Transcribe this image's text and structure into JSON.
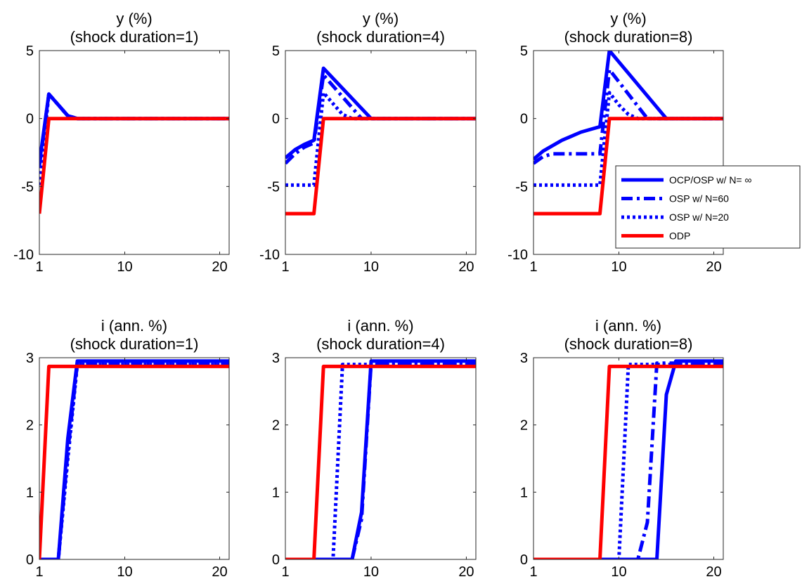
{
  "chart_data": [
    {
      "type": "line",
      "title": "y (%)",
      "subtitle": "(shock duration=1)",
      "xlim": [
        1,
        21
      ],
      "ylim": [
        -10,
        5
      ],
      "xticks": [
        1,
        10,
        20
      ],
      "yticks": [
        5,
        0,
        -5,
        -10
      ],
      "grid": false,
      "series": [
        {
          "name": "OCP/OSP w/ N= ∞",
          "style": "solid",
          "color": "#0000ff",
          "x": [
            1,
            2,
            3,
            4,
            5,
            21
          ],
          "y": [
            -3.3,
            1.8,
            1.0,
            0.2,
            0,
            0
          ]
        },
        {
          "name": "OSP w/ N=60",
          "style": "dashdot",
          "color": "#0000ff",
          "x": [
            1,
            2,
            3,
            4,
            5,
            21
          ],
          "y": [
            -3.5,
            1.8,
            1.0,
            0.2,
            0,
            0
          ]
        },
        {
          "name": "OSP w/ N=20",
          "style": "dotted",
          "color": "#0000ff",
          "x": [
            1,
            2,
            3,
            4,
            5,
            21
          ],
          "y": [
            -4.9,
            1.8,
            1.0,
            0.2,
            0,
            0
          ]
        },
        {
          "name": "ODP",
          "style": "solid",
          "color": "#ff0000",
          "x": [
            1,
            2,
            21
          ],
          "y": [
            -7,
            0,
            0
          ]
        }
      ]
    },
    {
      "type": "line",
      "title": "y (%)",
      "subtitle": "(shock duration=4)",
      "xlim": [
        1,
        21
      ],
      "ylim": [
        -10,
        5
      ],
      "xticks": [
        1,
        10,
        20
      ],
      "yticks": [
        5,
        0,
        -5,
        -10
      ],
      "grid": false,
      "series": [
        {
          "name": "OCP/OSP w/ N= ∞",
          "style": "solid",
          "color": "#0000ff",
          "x": [
            1,
            2,
            3,
            4,
            5,
            10,
            21
          ],
          "y": [
            -2.9,
            -2.3,
            -1.9,
            -1.6,
            3.7,
            0,
            0
          ]
        },
        {
          "name": "OSP w/ N=60",
          "style": "dashdot",
          "color": "#0000ff",
          "x": [
            1,
            2,
            3,
            4,
            5,
            9,
            21
          ],
          "y": [
            -3.3,
            -2.6,
            -2.1,
            -1.8,
            3.2,
            0,
            0
          ]
        },
        {
          "name": "OSP w/ N=20",
          "style": "dotted",
          "color": "#0000ff",
          "x": [
            1,
            4,
            5,
            7,
            8,
            21
          ],
          "y": [
            -4.9,
            -4.9,
            1.9,
            0.3,
            0,
            0
          ]
        },
        {
          "name": "ODP",
          "style": "solid",
          "color": "#ff0000",
          "x": [
            1,
            4,
            5,
            21
          ],
          "y": [
            -7,
            -7,
            0,
            0
          ]
        }
      ]
    },
    {
      "type": "line",
      "title": "y (%)",
      "subtitle": "(shock duration=8)",
      "xlim": [
        1,
        21
      ],
      "ylim": [
        -10,
        5
      ],
      "xticks": [
        1,
        10,
        20
      ],
      "yticks": [
        5,
        0,
        -5,
        -10
      ],
      "grid": false,
      "legend": {
        "position": "east"
      },
      "series": [
        {
          "name": "OCP/OSP w/ N= ∞",
          "style": "solid",
          "color": "#0000ff",
          "x": [
            1,
            2,
            3,
            4,
            5,
            6,
            7,
            8,
            9,
            15,
            21
          ],
          "y": [
            -3.0,
            -2.4,
            -2.0,
            -1.6,
            -1.3,
            -1.0,
            -0.8,
            -0.6,
            5.0,
            0,
            0
          ]
        },
        {
          "name": "OSP w/ N=60",
          "style": "dashdot",
          "color": "#0000ff",
          "x": [
            1,
            2,
            3,
            4,
            8,
            9,
            13,
            21
          ],
          "y": [
            -3.3,
            -2.8,
            -2.6,
            -2.6,
            -2.6,
            3.6,
            0,
            0
          ]
        },
        {
          "name": "OSP w/ N=20",
          "style": "dotted",
          "color": "#0000ff",
          "x": [
            1,
            8,
            9,
            10,
            11,
            12,
            21
          ],
          "y": [
            -4.9,
            -4.9,
            1.9,
            1.0,
            0.3,
            0,
            0
          ]
        },
        {
          "name": "ODP",
          "style": "solid",
          "color": "#ff0000",
          "x": [
            1,
            8,
            9,
            21
          ],
          "y": [
            -7,
            -7,
            0,
            0
          ]
        }
      ]
    },
    {
      "type": "line",
      "title": "i (ann. %)",
      "subtitle": "(shock duration=1)",
      "xlim": [
        1,
        21
      ],
      "ylim": [
        0,
        3
      ],
      "xticks": [
        1,
        10,
        20
      ],
      "yticks": [
        3,
        2,
        1,
        0
      ],
      "grid": false,
      "series": [
        {
          "name": "OCP/OSP w/ N= ∞",
          "style": "solid",
          "color": "#0000ff",
          "x": [
            1,
            3,
            4,
            5,
            21
          ],
          "y": [
            0,
            0,
            1.8,
            2.95,
            2.95
          ]
        },
        {
          "name": "OSP w/ N=60",
          "style": "dashdot",
          "color": "#0000ff",
          "x": [
            1,
            3,
            4,
            5,
            21
          ],
          "y": [
            0,
            0,
            1.6,
            2.92,
            2.92
          ]
        },
        {
          "name": "OSP w/ N=20",
          "style": "dotted",
          "color": "#0000ff",
          "x": [
            1,
            3,
            4,
            5,
            21
          ],
          "y": [
            0,
            0,
            1.5,
            2.9,
            2.9
          ]
        },
        {
          "name": "ODP",
          "style": "solid",
          "color": "#ff0000",
          "x": [
            1,
            2,
            21
          ],
          "y": [
            0,
            2.87,
            2.87
          ]
        }
      ]
    },
    {
      "type": "line",
      "title": "i (ann. %)",
      "subtitle": "(shock duration=4)",
      "xlim": [
        1,
        21
      ],
      "ylim": [
        0,
        3
      ],
      "xticks": [
        1,
        10,
        20
      ],
      "yticks": [
        3,
        2,
        1,
        0
      ],
      "grid": false,
      "series": [
        {
          "name": "OCP/OSP w/ N= ∞",
          "style": "solid",
          "color": "#0000ff",
          "x": [
            1,
            8,
            9,
            10,
            21
          ],
          "y": [
            0,
            0,
            0.7,
            2.95,
            2.95
          ]
        },
        {
          "name": "OSP w/ N=60",
          "style": "dashdot",
          "color": "#0000ff",
          "x": [
            1,
            8,
            9,
            10,
            21
          ],
          "y": [
            0,
            0,
            0.6,
            2.92,
            2.92
          ]
        },
        {
          "name": "OSP w/ N=20",
          "style": "dotted",
          "color": "#0000ff",
          "x": [
            1,
            6,
            7,
            21
          ],
          "y": [
            0,
            0,
            2.9,
            2.9
          ]
        },
        {
          "name": "ODP",
          "style": "solid",
          "color": "#ff0000",
          "x": [
            1,
            4,
            5,
            21
          ],
          "y": [
            0,
            0,
            2.87,
            2.87
          ]
        }
      ]
    },
    {
      "type": "line",
      "title": "i (ann. %)",
      "subtitle": "(shock duration=8)",
      "xlim": [
        1,
        21
      ],
      "ylim": [
        0,
        3
      ],
      "xticks": [
        1,
        10,
        20
      ],
      "yticks": [
        3,
        2,
        1,
        0
      ],
      "grid": false,
      "series": [
        {
          "name": "OCP/OSP w/ N= ∞",
          "style": "solid",
          "color": "#0000ff",
          "x": [
            1,
            14,
            15,
            16,
            21
          ],
          "y": [
            0,
            0,
            2.45,
            2.95,
            2.95
          ]
        },
        {
          "name": "OSP w/ N=60",
          "style": "dashdot",
          "color": "#0000ff",
          "x": [
            1,
            12,
            13,
            14,
            21
          ],
          "y": [
            0,
            0,
            0.55,
            2.92,
            2.92
          ]
        },
        {
          "name": "OSP w/ N=20",
          "style": "dotted",
          "color": "#0000ff",
          "x": [
            1,
            10,
            11,
            21
          ],
          "y": [
            0,
            0,
            2.9,
            2.9
          ]
        },
        {
          "name": "ODP",
          "style": "solid",
          "color": "#ff0000",
          "x": [
            1,
            8,
            9,
            21
          ],
          "y": [
            0,
            0,
            2.87,
            2.87
          ]
        }
      ]
    }
  ],
  "legend": {
    "entries": [
      {
        "label": "OCP/OSP w/ N= ∞",
        "style": "solid",
        "color": "#0000ff"
      },
      {
        "label": "OSP w/ N=60",
        "style": "dashdot",
        "color": "#0000ff"
      },
      {
        "label": "OSP w/ N=20",
        "style": "dotted",
        "color": "#0000ff"
      },
      {
        "label": "ODP",
        "style": "solid",
        "color": "#ff0000"
      }
    ]
  }
}
